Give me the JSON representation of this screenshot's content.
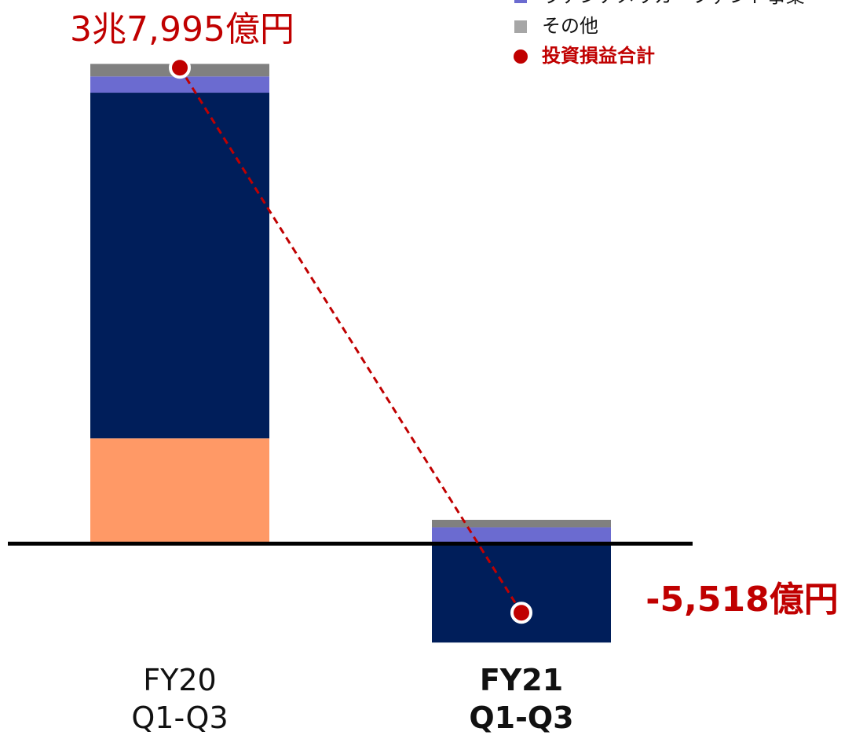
{
  "chart_data": {
    "type": "stacked_bar",
    "categories": [
      "FY20\nQ1-Q3",
      "FY21\nQ1-Q3"
    ],
    "series": [
      {
        "color": "#ff9966",
        "values": [
          8400,
          0
        ]
      },
      {
        "color": "#001e5a",
        "values": [
          27600,
          -7900
        ]
      },
      {
        "name": "ラテンアメリカ・ファンド事業",
        "color": "#6b6bd0",
        "values": [
          1300,
          1300
        ]
      },
      {
        "name": "その他",
        "color": "#808080",
        "values": [
          1000,
          600
        ]
      }
    ],
    "total": {
      "name": "投資損益合計",
      "color": "#c00000",
      "values": [
        37995,
        -5518
      ],
      "value_labels": [
        "3兆7,995億円",
        "-5,518億円"
      ]
    },
    "ylim": [
      -15600,
      43400
    ]
  }
}
